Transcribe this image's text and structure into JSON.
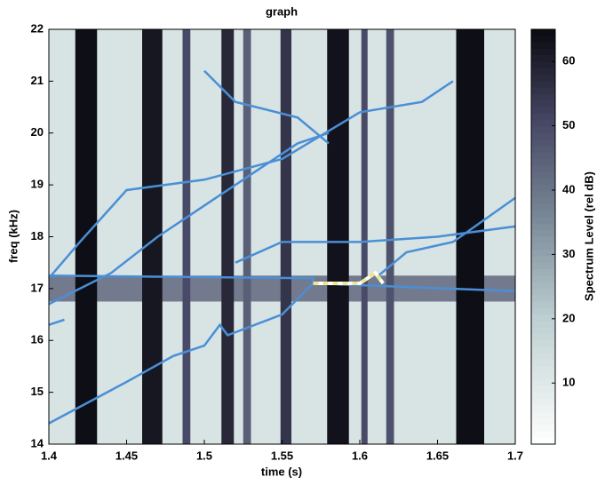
{
  "chart_data": {
    "type": "spectrogram",
    "title": "graph",
    "x_label": "time (s)",
    "y_label": "freq (kHz)",
    "xlim": [
      1.4,
      1.7
    ],
    "ylim": [
      14,
      22
    ],
    "xticks": [
      1.4,
      1.45,
      1.5,
      1.55,
      1.6,
      1.65,
      1.7
    ],
    "yticks": [
      14,
      15,
      16,
      17,
      18,
      19,
      20,
      21,
      22
    ],
    "colorbar": {
      "label": "Spectrum Level (rel dB)",
      "clim": [
        0.5,
        65
      ],
      "ticks": [
        10,
        20,
        30,
        40,
        50,
        60
      ]
    },
    "background_level": 12,
    "bands": {
      "start": [
        1.417,
        1.46,
        1.486,
        1.511,
        1.525,
        1.549,
        1.579,
        1.601,
        1.617,
        1.662
      ],
      "end": [
        1.431,
        1.473,
        1.491,
        1.519,
        1.53,
        1.556,
        1.593,
        1.605,
        1.622,
        1.68
      ],
      "levels": [
        64,
        62,
        50,
        58,
        45,
        55,
        63,
        50,
        48,
        64
      ]
    },
    "hbands": {
      "low": [
        16.75
      ],
      "high": [
        17.25
      ],
      "levels": [
        45
      ]
    },
    "series": [
      {
        "color": "#4a8fd6",
        "x": [
          1.4,
          1.42,
          1.45,
          1.5,
          1.55,
          1.6,
          1.64,
          1.66
        ],
        "values": [
          17.2,
          17.9,
          18.9,
          19.1,
          19.5,
          20.4,
          20.6,
          21.0
        ]
      },
      {
        "color": "#4a8fd6",
        "x": [
          1.4,
          1.44,
          1.47,
          1.5,
          1.53,
          1.56,
          1.58
        ],
        "values": [
          16.7,
          17.3,
          18.0,
          18.6,
          19.2,
          19.8,
          20.0
        ]
      },
      {
        "color": "#4a8fd6",
        "x": [
          1.5,
          1.52,
          1.56,
          1.58
        ],
        "values": [
          21.2,
          20.6,
          20.3,
          19.8
        ]
      },
      {
        "color": "#4a8fd6",
        "x": [
          1.4,
          1.57,
          1.57,
          1.7
        ],
        "values": [
          17.25,
          17.2,
          17.1,
          16.95
        ]
      },
      {
        "color": "#4a8fd6",
        "x": [
          1.4,
          1.45,
          1.48,
          1.5,
          1.51,
          1.515,
          1.55,
          1.57
        ],
        "values": [
          14.4,
          15.2,
          15.7,
          15.9,
          16.3,
          16.1,
          16.5,
          17.1
        ]
      },
      {
        "color": "#4a8fd6",
        "x": [
          1.52,
          1.55,
          1.6,
          1.65,
          1.7
        ],
        "values": [
          17.5,
          17.9,
          17.9,
          18.0,
          18.2
        ]
      },
      {
        "color": "#4a8fd6",
        "x": [
          1.61,
          1.63,
          1.66,
          1.7
        ],
        "values": [
          17.2,
          17.7,
          17.9,
          18.75
        ]
      },
      {
        "color": "#4a8fd6",
        "x": [
          1.4,
          1.41
        ],
        "values": [
          16.3,
          16.4
        ]
      },
      {
        "color": "#f0e68c",
        "dashed": true,
        "x": [
          1.57,
          1.6,
          1.61,
          1.615
        ],
        "values": [
          17.1,
          17.1,
          17.3,
          17.1
        ]
      }
    ]
  }
}
